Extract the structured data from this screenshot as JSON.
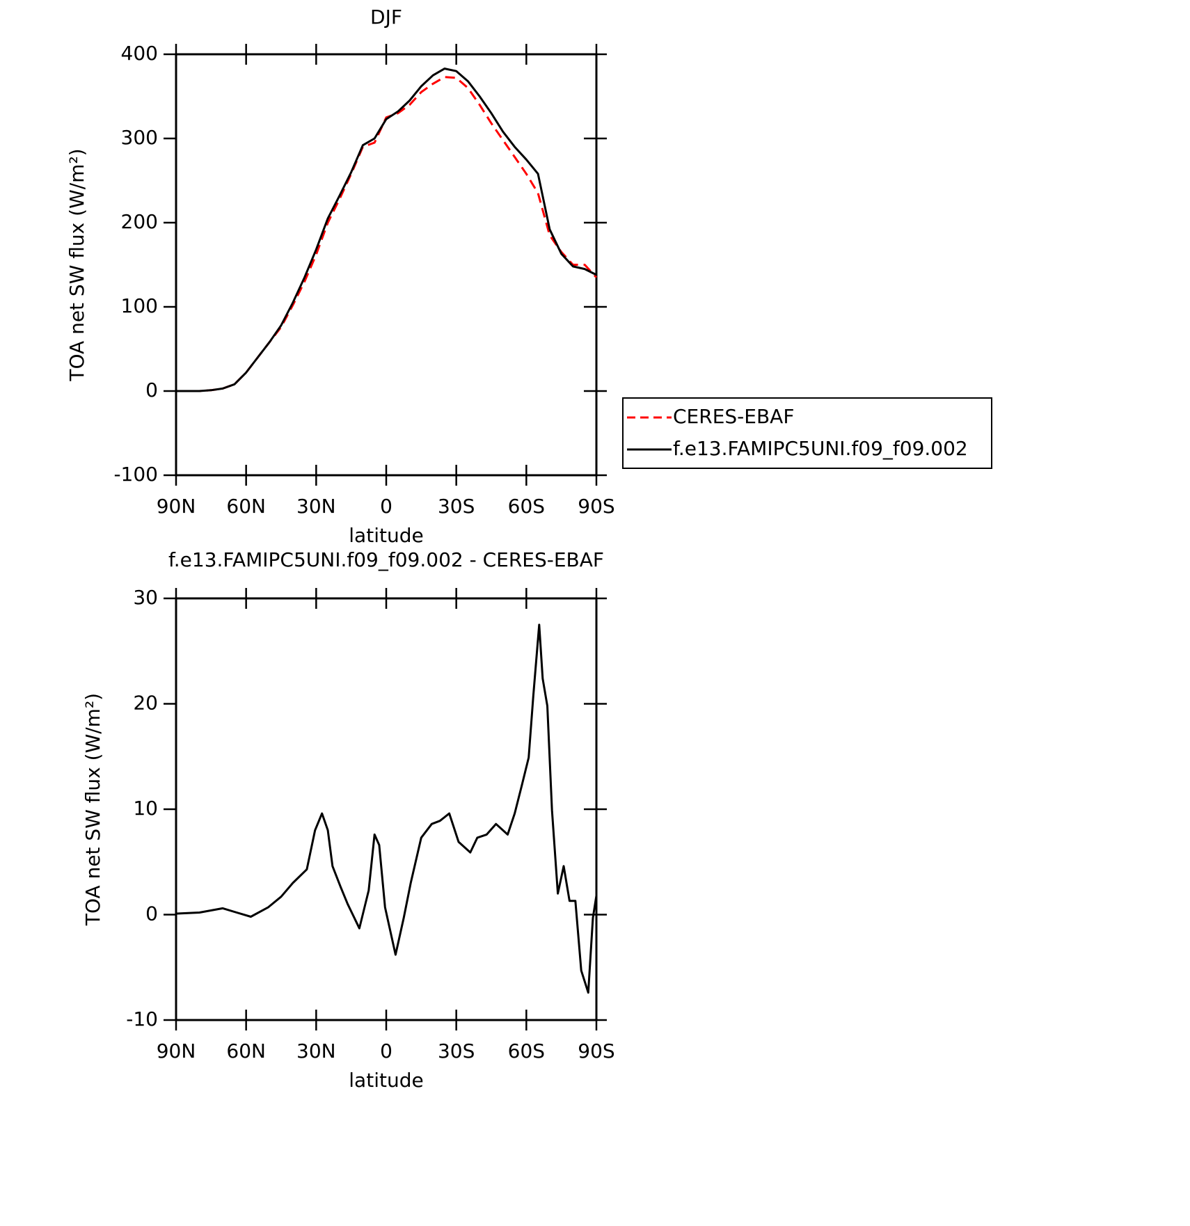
{
  "chart_data": [
    {
      "type": "line",
      "title": "DJF",
      "xlabel": "latitude",
      "ylabel": "TOA net SW flux (W/m²)",
      "x": [
        90,
        85,
        80,
        75,
        70,
        65,
        60,
        55,
        50,
        45,
        40,
        35,
        30,
        25,
        20,
        15,
        10,
        5,
        0,
        -5,
        -10,
        -15,
        -20,
        -25,
        -30,
        -35,
        -40,
        -45,
        -50,
        -55,
        -60,
        -65,
        -70,
        -75,
        -80,
        -85,
        -90
      ],
      "xlim": [
        90,
        -90
      ],
      "xticks": [
        {
          "value": 90,
          "label": "90N"
        },
        {
          "value": 60,
          "label": "60N"
        },
        {
          "value": 30,
          "label": "30N"
        },
        0,
        {
          "value": -30,
          "label": "30S"
        },
        {
          "value": -60,
          "label": "60S"
        },
        {
          "value": -90,
          "label": "90S"
        }
      ],
      "ylim": [
        -100,
        400
      ],
      "yticks": [
        -100,
        0,
        100,
        200,
        300,
        400
      ],
      "series": [
        {
          "name": "CERES-EBAF",
          "color": "#ff0000",
          "dashed": true,
          "values": [
            0,
            0,
            0,
            1,
            3,
            8,
            22,
            40,
            58,
            76,
            102,
            130,
            162,
            200,
            228,
            258,
            290,
            295,
            325,
            330,
            340,
            355,
            365,
            373,
            372,
            360,
            340,
            318,
            298,
            278,
            258,
            235,
            185,
            165,
            150,
            150,
            135
          ]
        },
        {
          "name": "f.e13.FAMIPC5UNI.f09_f09.002",
          "color": "#000000",
          "dashed": false,
          "values": [
            0,
            0,
            0,
            1,
            3,
            8,
            22,
            40,
            58,
            78,
            105,
            135,
            168,
            205,
            232,
            260,
            292,
            300,
            323,
            332,
            345,
            362,
            375,
            383,
            380,
            368,
            350,
            330,
            308,
            290,
            275,
            258,
            192,
            163,
            148,
            145,
            138
          ]
        }
      ],
      "legend": "right"
    },
    {
      "type": "line",
      "title": "f.e13.FAMIPC5UNI.f09_f09.002 - CERES-EBAF",
      "xlabel": "latitude",
      "ylabel": "TOA net SW flux (W/m²)",
      "x": [
        90,
        80,
        70,
        64,
        58,
        50.5,
        45,
        40,
        34,
        30.5,
        27.5,
        25,
        23,
        19.5,
        16.5,
        11.5,
        7.5,
        5,
        3,
        0.5,
        -4,
        -7.5,
        -10.5,
        -15,
        -19.5,
        -23,
        -27,
        -31,
        -36,
        -39,
        -43,
        -47,
        -52,
        -55,
        -58,
        -61,
        -63,
        -65.5,
        -67,
        -69,
        -71,
        -73.5,
        -76,
        -78.5,
        -81,
        -83.5,
        -86.5,
        -88.5,
        -90
      ],
      "xlim": [
        90,
        -90
      ],
      "xticks": [
        {
          "value": 90,
          "label": "90N"
        },
        {
          "value": 60,
          "label": "60N"
        },
        {
          "value": 30,
          "label": "30N"
        },
        0,
        {
          "value": -30,
          "label": "30S"
        },
        {
          "value": -60,
          "label": "60S"
        },
        {
          "value": -90,
          "label": "90S"
        }
      ],
      "ylim": [
        -10,
        30
      ],
      "yticks": [
        -10,
        0,
        10,
        20,
        30
      ],
      "color": "#000000",
      "values": [
        0.1,
        0.2,
        0.6,
        0.2,
        -0.2,
        0.7,
        1.7,
        3,
        4.3,
        8,
        9.6,
        8,
        4.6,
        2.6,
        1,
        -1.3,
        2.3,
        7.6,
        6.6,
        0.7,
        -3.8,
        -0.3,
        3,
        7.3,
        8.6,
        8.9,
        9.6,
        6.9,
        5.9,
        7.3,
        7.6,
        8.6,
        7.6,
        9.6,
        12.2,
        14.9,
        20.8,
        27.5,
        22.4,
        19.8,
        9.9,
        2,
        4.6,
        1.3,
        1.3,
        -5.3,
        -7.4,
        -0.3,
        1.8
      ]
    }
  ]
}
